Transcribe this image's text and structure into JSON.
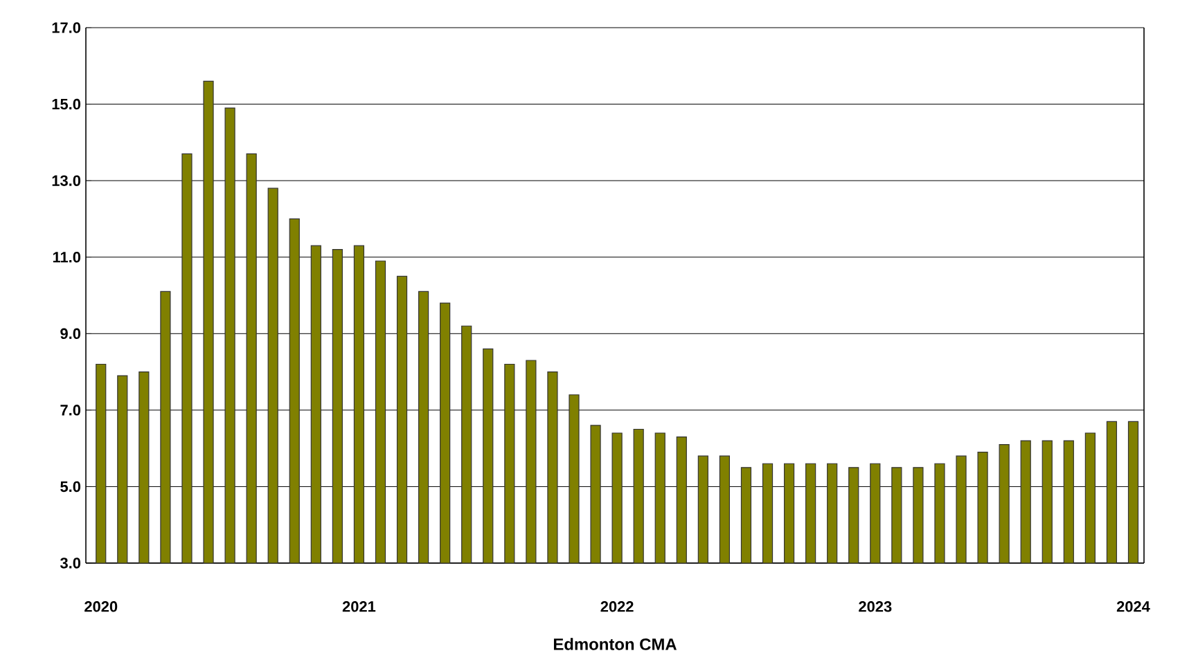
{
  "chart_data": {
    "type": "bar",
    "xlabel": "Edmonton CMA",
    "categories": [
      "2020",
      null,
      null,
      null,
      null,
      null,
      null,
      null,
      null,
      null,
      null,
      null,
      "2021",
      null,
      null,
      null,
      null,
      null,
      null,
      null,
      null,
      null,
      null,
      null,
      "2022",
      null,
      null,
      null,
      null,
      null,
      null,
      null,
      null,
      null,
      null,
      null,
      "2023",
      null,
      null,
      null,
      null,
      null,
      null,
      null,
      null,
      null,
      null,
      null,
      "2024"
    ],
    "values": [
      8.2,
      7.9,
      8.0,
      10.1,
      13.7,
      15.6,
      14.9,
      13.7,
      12.8,
      12.0,
      11.3,
      11.2,
      11.3,
      10.9,
      10.5,
      10.1,
      9.8,
      9.2,
      8.6,
      8.2,
      8.3,
      8.0,
      7.4,
      6.6,
      6.4,
      6.5,
      6.4,
      6.3,
      5.8,
      5.8,
      5.5,
      5.6,
      5.6,
      5.6,
      5.6,
      5.5,
      5.6,
      5.5,
      5.5,
      5.6,
      5.8,
      5.9,
      6.1,
      6.2,
      6.2,
      6.2,
      6.4,
      6.7,
      6.7
    ],
    "color": "#808000",
    "ylim": [
      3,
      17
    ],
    "yticks": [
      {
        "value": 3,
        "label": "3.0"
      },
      {
        "value": 5,
        "label": "5.0"
      },
      {
        "value": 7,
        "label": "7.0"
      },
      {
        "value": 9,
        "label": "9.0"
      },
      {
        "value": 11,
        "label": "11.0"
      },
      {
        "value": 13,
        "label": "13.0"
      },
      {
        "value": 15,
        "label": "15.0"
      },
      {
        "value": 17,
        "label": "17.0"
      }
    ],
    "grid": "y"
  }
}
